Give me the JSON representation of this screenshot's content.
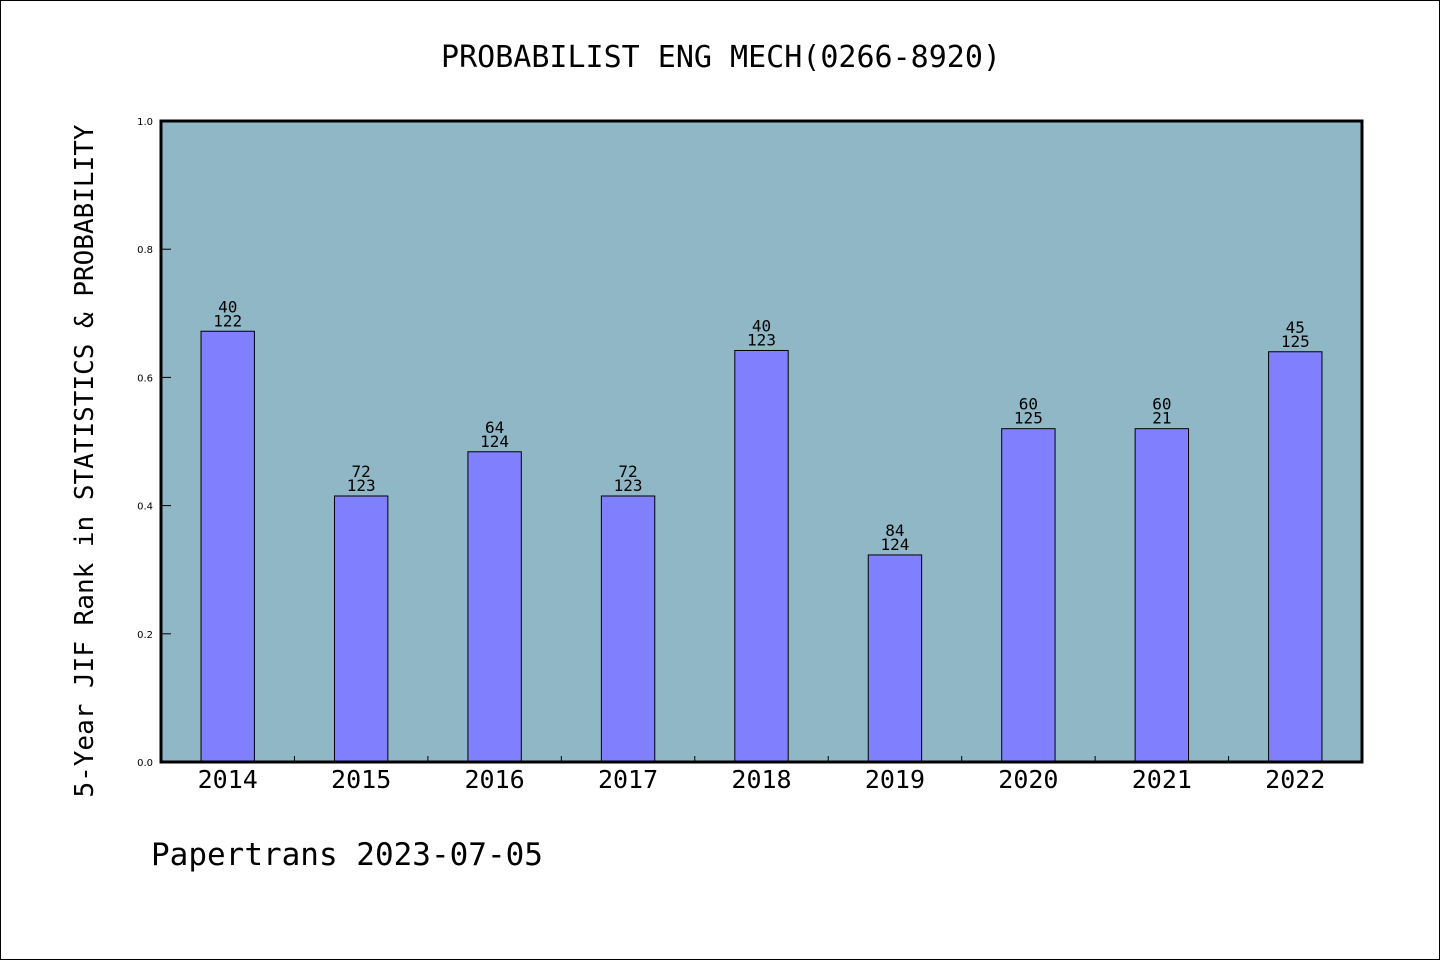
{
  "chart_data": {
    "type": "bar",
    "title": "PROBABILIST ENG MECH(0266-8920)",
    "xlabel": "",
    "ylabel": "5-Year JIF Rank in STATISTICS & PROBABILITY",
    "categories": [
      "2014",
      "2015",
      "2016",
      "2017",
      "2018",
      "2019",
      "2020",
      "2021",
      "2022"
    ],
    "values": [
      0.672,
      0.415,
      0.484,
      0.415,
      0.642,
      0.323,
      0.52,
      0.52,
      0.64
    ],
    "bar_labels": [
      [
        "40",
        "122"
      ],
      [
        "72",
        "123"
      ],
      [
        "64",
        "124"
      ],
      [
        "72",
        "123"
      ],
      [
        "40",
        "123"
      ],
      [
        "84",
        "124"
      ],
      [
        "60",
        "125"
      ],
      [
        "60",
        "21"
      ],
      [
        "45",
        "125"
      ]
    ],
    "ylim": [
      0,
      1.0
    ],
    "yticks": [
      "0.0",
      "0.2",
      "0.4",
      "0.6",
      "0.8",
      "1.0"
    ],
    "grid": false,
    "colors": {
      "plot_background": "#8fb7c6",
      "bar_fill": "#8080ff",
      "bar_stroke": "#000000"
    }
  },
  "footer": {
    "credit": "Papertrans 2023-07-05"
  }
}
